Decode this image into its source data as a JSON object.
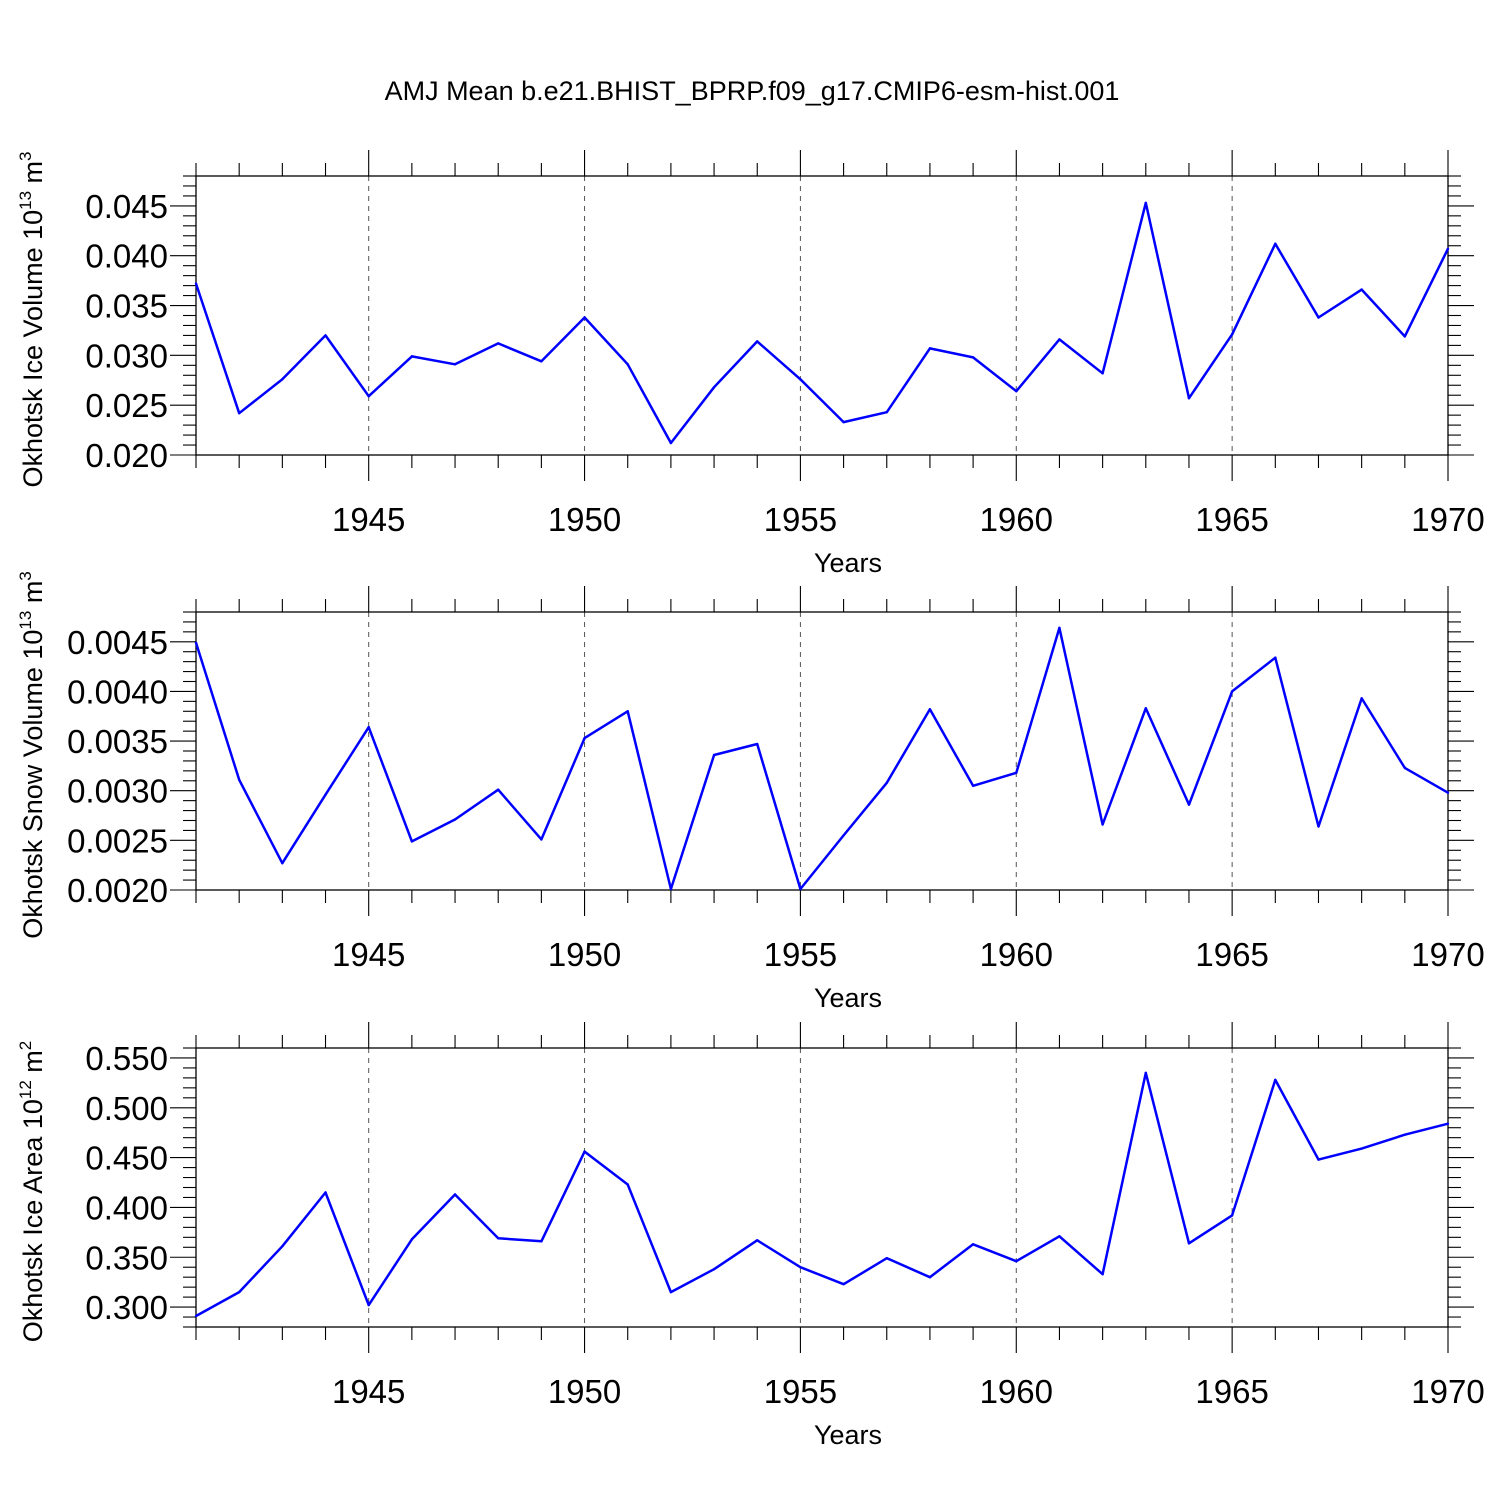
{
  "title": "AMJ Mean b.e21.BHIST_BPRP.f09_g17.CMIP6-esm-hist.001",
  "colors": {
    "line": "#0000ff",
    "axis": "#000000",
    "grid": "#555555"
  },
  "chart_data": [
    {
      "type": "line",
      "ylabel": {
        "text": "Okhotsk Ice Volume 10",
        "sup": "13",
        "unit": " m",
        "unit_sup": "3"
      },
      "xlabel": "Years",
      "xlim": [
        1941,
        1970
      ],
      "ylim": [
        0.02,
        0.048
      ],
      "xticks": [
        1945,
        1950,
        1955,
        1960,
        1965,
        1970
      ],
      "xtick_labels": [
        "1945",
        "1950",
        "1955",
        "1960",
        "1965",
        "1970"
      ],
      "yticks": [
        0.02,
        0.025,
        0.03,
        0.035,
        0.04,
        0.045
      ],
      "ytick_labels": [
        "0.020",
        "0.025",
        "0.030",
        "0.035",
        "0.040",
        "0.045"
      ],
      "grid": "vertical dashed at major x ticks",
      "x": [
        1941,
        1942,
        1943,
        1944,
        1945,
        1946,
        1947,
        1948,
        1949,
        1950,
        1951,
        1952,
        1953,
        1954,
        1955,
        1956,
        1957,
        1958,
        1959,
        1960,
        1961,
        1962,
        1963,
        1964,
        1965,
        1966,
        1967,
        1968,
        1969,
        1970
      ],
      "values": [
        0.0372,
        0.0242,
        0.0276,
        0.032,
        0.0259,
        0.0299,
        0.0291,
        0.0312,
        0.0294,
        0.0338,
        0.0291,
        0.0212,
        0.0268,
        0.0314,
        0.0276,
        0.0233,
        0.0243,
        0.0307,
        0.0298,
        0.0264,
        0.0316,
        0.0282,
        0.0453,
        0.0257,
        0.0321,
        0.0412,
        0.0338,
        0.0366,
        0.0319,
        0.0407
      ]
    },
    {
      "type": "line",
      "ylabel": {
        "text": "Okhotsk Snow Volume 10",
        "sup": "13",
        "unit": " m",
        "unit_sup": "3"
      },
      "xlabel": "Years",
      "xlim": [
        1941,
        1970
      ],
      "ylim": [
        0.002,
        0.0048
      ],
      "xticks": [
        1945,
        1950,
        1955,
        1960,
        1965,
        1970
      ],
      "xtick_labels": [
        "1945",
        "1950",
        "1955",
        "1960",
        "1965",
        "1970"
      ],
      "yticks": [
        0.002,
        0.0025,
        0.003,
        0.0035,
        0.004,
        0.0045
      ],
      "ytick_labels": [
        "0.0020",
        "0.0025",
        "0.0030",
        "0.0035",
        "0.0040",
        "0.0045"
      ],
      "grid": "vertical dashed at major x ticks",
      "x": [
        1941,
        1942,
        1943,
        1944,
        1945,
        1946,
        1947,
        1948,
        1949,
        1950,
        1951,
        1952,
        1953,
        1954,
        1955,
        1956,
        1957,
        1958,
        1959,
        1960,
        1961,
        1962,
        1963,
        1964,
        1965,
        1966,
        1967,
        1968,
        1969,
        1970
      ],
      "values": [
        0.00449,
        0.00311,
        0.00227,
        0.00296,
        0.00364,
        0.00249,
        0.00271,
        0.00301,
        0.00251,
        0.00353,
        0.0038,
        0.00201,
        0.00336,
        0.00347,
        0.00201,
        0.00255,
        0.00308,
        0.00382,
        0.00305,
        0.00318,
        0.00464,
        0.00266,
        0.00383,
        0.00286,
        0.004,
        0.00434,
        0.00264,
        0.00393,
        0.00323,
        0.00298
      ]
    },
    {
      "type": "line",
      "ylabel": {
        "text": "Okhotsk Ice Area 10",
        "sup": "12",
        "unit": " m",
        "unit_sup": "2"
      },
      "xlabel": "Years",
      "xlim": [
        1941,
        1970
      ],
      "ylim": [
        0.28,
        0.56
      ],
      "xticks": [
        1945,
        1950,
        1955,
        1960,
        1965,
        1970
      ],
      "xtick_labels": [
        "1945",
        "1950",
        "1955",
        "1960",
        "1965",
        "1970"
      ],
      "yticks": [
        0.3,
        0.35,
        0.4,
        0.45,
        0.5,
        0.55
      ],
      "ytick_labels": [
        "0.300",
        "0.350",
        "0.400",
        "0.450",
        "0.500",
        "0.550"
      ],
      "grid": "vertical dashed at major x ticks",
      "x": [
        1941,
        1942,
        1943,
        1944,
        1945,
        1946,
        1947,
        1948,
        1949,
        1950,
        1951,
        1952,
        1953,
        1954,
        1955,
        1956,
        1957,
        1958,
        1959,
        1960,
        1961,
        1962,
        1963,
        1964,
        1965,
        1966,
        1967,
        1968,
        1969,
        1970
      ],
      "values": [
        0.291,
        0.315,
        0.361,
        0.415,
        0.302,
        0.368,
        0.413,
        0.369,
        0.366,
        0.456,
        0.423,
        0.315,
        0.338,
        0.367,
        0.34,
        0.323,
        0.349,
        0.33,
        0.363,
        0.346,
        0.371,
        0.333,
        0.535,
        0.364,
        0.392,
        0.528,
        0.448,
        0.459,
        0.473,
        0.484
      ]
    }
  ]
}
